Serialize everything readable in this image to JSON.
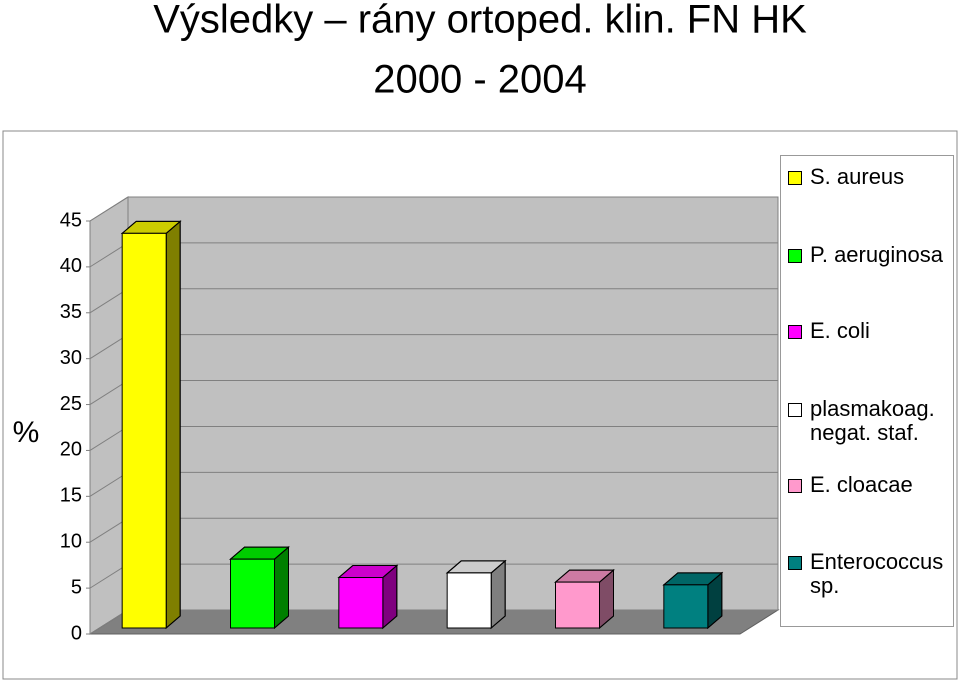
{
  "chart_data": {
    "type": "bar3d",
    "title": "Výsledky – rány ortoped. klin. FN HK",
    "subtitle": "2000 - 2004",
    "y_label": "%",
    "series": [
      {
        "name": "S. aureus",
        "color": "#ffff00",
        "values": [
          43
        ]
      },
      {
        "name": "P. aeruginosa",
        "color": "#00ff00",
        "values": [
          7.5
        ]
      },
      {
        "name": "E. coli",
        "color": "#ff00ff",
        "values": [
          5.5
        ]
      },
      {
        "name": "plasmakoag. negat. staf.",
        "color": "#ffffff",
        "values": [
          6
        ]
      },
      {
        "name": "E. cloacae",
        "color": "#ff99cc",
        "values": [
          5
        ]
      },
      {
        "name": "Enterococcus sp.",
        "color": "#008080",
        "values": [
          4.7
        ]
      }
    ],
    "ylim": [
      0,
      45
    ],
    "yticks": [
      0,
      5,
      10,
      15,
      20,
      25,
      30,
      35,
      40,
      45
    ],
    "grid": true
  }
}
